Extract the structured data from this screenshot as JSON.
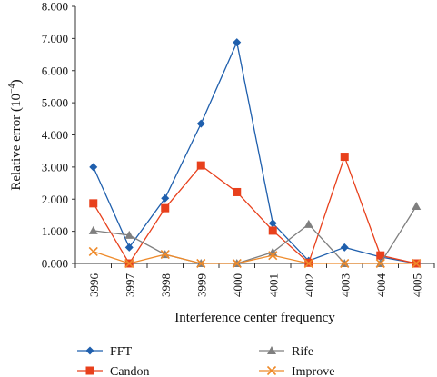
{
  "chart_data": {
    "type": "line",
    "title": "",
    "xlabel": "Interference center frequency",
    "ylabel": "Relative error (10",
    "ylabel_sup": "−4",
    "ylabel_tail": ")",
    "categories": [
      "3996",
      "3997",
      "3998",
      "3999",
      "4000",
      "4001",
      "4002",
      "4003",
      "4004",
      "4005"
    ],
    "y_ticks": [
      "0.000",
      "1.000",
      "2.000",
      "3.000",
      "4.000",
      "5.000",
      "6.000",
      "7.000",
      "8.000"
    ],
    "ylim": [
      0,
      8
    ],
    "grid": false,
    "legend_position": "bottom",
    "series": [
      {
        "name": "FFT",
        "color": "#1f5fad",
        "marker": "diamond",
        "values": [
          3.0,
          0.5,
          2.03,
          4.35,
          6.88,
          1.25,
          0.08,
          0.5,
          0.2,
          0.0
        ]
      },
      {
        "name": "Candon",
        "color": "#e8401c",
        "marker": "square",
        "values": [
          1.87,
          0.0,
          1.72,
          3.05,
          2.22,
          1.02,
          0.02,
          3.32,
          0.25,
          0.0
        ]
      },
      {
        "name": "Rife",
        "color": "#7f7f7f",
        "marker": "triangle",
        "values": [
          1.02,
          0.88,
          0.28,
          0.0,
          0.0,
          0.35,
          1.22,
          0.0,
          0.0,
          1.78
        ]
      },
      {
        "name": "Improve",
        "color": "#ee8a2a",
        "marker": "x",
        "values": [
          0.37,
          0.0,
          0.28,
          0.0,
          0.0,
          0.25,
          0.0,
          0.0,
          0.0,
          0.0
        ]
      }
    ]
  }
}
